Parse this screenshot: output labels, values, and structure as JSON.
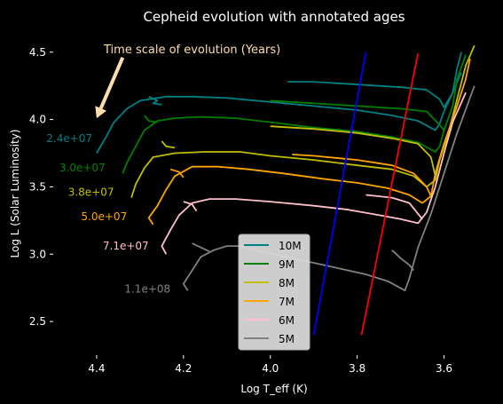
{
  "chart_data": {
    "type": "line",
    "title": "Cepheid evolution with annotated ages",
    "xlabel": "Log T_eff (K)",
    "ylabel": "Log L (Solar Luminosity)",
    "xlim": [
      4.5,
      3.55
    ],
    "ylim": [
      2.25,
      4.65
    ],
    "x_inverted": true,
    "xticks": [
      4.4,
      4.2,
      4.0,
      3.8,
      3.6
    ],
    "xtick_labels": [
      "4.4",
      "4.2",
      "4.0",
      "3.8",
      "3.6"
    ],
    "yticks": [
      2.5,
      3.0,
      3.5,
      4.0,
      4.5
    ],
    "ytick_labels": [
      "2.5",
      "3.0",
      "3.5",
      "4.0",
      "4.5"
    ],
    "grid": false,
    "legend_position": "lower-center",
    "annotation": {
      "text": "Time scale of evolution (Years)",
      "arrow_from": [
        4.34,
        4.46
      ],
      "arrow_to": [
        4.4,
        4.01
      ],
      "color": "#ffdead"
    },
    "instability_strip": [
      {
        "color": "#0000ff",
        "points": [
          [
            3.9,
            2.4
          ],
          [
            3.78,
            4.5
          ]
        ]
      },
      {
        "color": "#ff0000",
        "points": [
          [
            3.79,
            2.4
          ],
          [
            3.66,
            4.49
          ]
        ]
      }
    ],
    "series": [
      {
        "name": "10M",
        "color": "#008080",
        "age_label": "2.4e+07",
        "age_pos": [
          4.41,
          3.86
        ],
        "segments": [
          [
            [
              4.4,
              3.75
            ],
            [
              4.38,
              3.86
            ],
            [
              4.36,
              3.98
            ],
            [
              4.33,
              4.08
            ],
            [
              4.3,
              4.14
            ],
            [
              4.24,
              4.17
            ],
            [
              4.18,
              4.17
            ],
            [
              4.1,
              4.16
            ],
            [
              4.0,
              4.13
            ],
            [
              3.9,
              4.1
            ],
            [
              3.8,
              4.07
            ],
            [
              3.72,
              4.03
            ],
            [
              3.66,
              3.99
            ],
            [
              3.62,
              3.92
            ],
            [
              3.61,
              3.97
            ],
            [
              3.6,
              4.06
            ],
            [
              3.58,
              4.2
            ],
            [
              3.57,
              4.38
            ],
            [
              3.56,
              4.5
            ]
          ],
          [
            [
              4.28,
              4.17
            ],
            [
              4.26,
              4.14
            ],
            [
              4.27,
              4.12
            ],
            [
              4.25,
              4.11
            ]
          ],
          [
            [
              3.96,
              4.28
            ],
            [
              3.9,
              4.28
            ],
            [
              3.8,
              4.26
            ],
            [
              3.7,
              4.24
            ],
            [
              3.64,
              4.22
            ],
            [
              3.61,
              4.15
            ],
            [
              3.6,
              4.09
            ],
            [
              3.58,
              4.2
            ],
            [
              3.56,
              4.35
            ]
          ]
        ]
      },
      {
        "name": "9M",
        "color": "#008000",
        "age_label": "3.0e+07",
        "age_pos": [
          4.38,
          3.64
        ],
        "segments": [
          [
            [
              4.34,
              3.6
            ],
            [
              4.33,
              3.68
            ],
            [
              4.31,
              3.8
            ],
            [
              4.29,
              3.92
            ],
            [
              4.26,
              3.99
            ],
            [
              4.22,
              4.01
            ],
            [
              4.16,
              4.02
            ],
            [
              4.08,
              4.01
            ],
            [
              4.0,
              3.98
            ],
            [
              3.9,
              3.94
            ],
            [
              3.8,
              3.91
            ],
            [
              3.72,
              3.87
            ],
            [
              3.66,
              3.83
            ],
            [
              3.62,
              3.76
            ],
            [
              3.61,
              3.8
            ],
            [
              3.6,
              3.92
            ],
            [
              3.58,
              4.1
            ],
            [
              3.57,
              4.3
            ],
            [
              3.55,
              4.48
            ]
          ],
          [
            [
              4.29,
              4.03
            ],
            [
              4.28,
              3.99
            ],
            [
              4.26,
              3.98
            ]
          ],
          [
            [
              4.0,
              4.14
            ],
            [
              3.9,
              4.12
            ],
            [
              3.8,
              4.1
            ],
            [
              3.7,
              4.08
            ],
            [
              3.64,
              4.06
            ],
            [
              3.61,
              3.96
            ],
            [
              3.6,
              3.92
            ]
          ]
        ]
      },
      {
        "name": "8M",
        "color": "#bfbf00",
        "age_label": "3.8e+07",
        "age_pos": [
          4.36,
          3.46
        ],
        "segments": [
          [
            [
              4.32,
              3.42
            ],
            [
              4.31,
              3.52
            ],
            [
              4.29,
              3.64
            ],
            [
              4.27,
              3.72
            ],
            [
              4.22,
              3.75
            ],
            [
              4.15,
              3.76
            ],
            [
              4.07,
              3.76
            ],
            [
              4.0,
              3.73
            ],
            [
              3.9,
              3.7
            ],
            [
              3.8,
              3.66
            ],
            [
              3.72,
              3.63
            ],
            [
              3.67,
              3.58
            ],
            [
              3.64,
              3.5
            ],
            [
              3.62,
              3.55
            ],
            [
              3.61,
              3.7
            ],
            [
              3.59,
              3.9
            ],
            [
              3.57,
              4.15
            ],
            [
              3.55,
              4.4
            ],
            [
              3.53,
              4.55
            ]
          ],
          [
            [
              4.25,
              3.84
            ],
            [
              4.24,
              3.8
            ],
            [
              4.22,
              3.79
            ]
          ],
          [
            [
              4.0,
              3.95
            ],
            [
              3.9,
              3.93
            ],
            [
              3.8,
              3.9
            ],
            [
              3.72,
              3.86
            ],
            [
              3.66,
              3.82
            ],
            [
              3.63,
              3.72
            ],
            [
              3.62,
              3.58
            ]
          ]
        ]
      },
      {
        "name": "7M",
        "color": "#ffa500",
        "age_label": "5.0e+07",
        "age_pos": [
          4.33,
          3.28
        ],
        "segments": [
          [
            [
              4.27,
              3.22
            ],
            [
              4.28,
              3.27
            ],
            [
              4.26,
              3.36
            ],
            [
              4.24,
              3.48
            ],
            [
              4.22,
              3.58
            ],
            [
              4.18,
              3.65
            ],
            [
              4.12,
              3.65
            ],
            [
              4.05,
              3.63
            ],
            [
              3.97,
              3.6
            ],
            [
              3.88,
              3.56
            ],
            [
              3.8,
              3.53
            ],
            [
              3.73,
              3.49
            ],
            [
              3.68,
              3.44
            ],
            [
              3.65,
              3.38
            ],
            [
              3.63,
              3.43
            ],
            [
              3.62,
              3.6
            ],
            [
              3.6,
              3.82
            ],
            [
              3.57,
              4.1
            ],
            [
              3.55,
              4.3
            ],
            [
              3.54,
              4.45
            ]
          ],
          [
            [
              4.23,
              3.63
            ],
            [
              4.21,
              3.61
            ],
            [
              4.2,
              3.57
            ]
          ],
          [
            [
              3.95,
              3.74
            ],
            [
              3.9,
              3.73
            ],
            [
              3.8,
              3.7
            ],
            [
              3.72,
              3.66
            ],
            [
              3.67,
              3.6
            ],
            [
              3.64,
              3.5
            ],
            [
              3.63,
              3.43
            ]
          ]
        ]
      },
      {
        "name": "6M",
        "color": "#ffc0cb",
        "age_label": "7.1e+07",
        "age_pos": [
          4.28,
          3.06
        ],
        "segments": [
          [
            [
              4.24,
              3.0
            ],
            [
              4.25,
              3.06
            ],
            [
              4.23,
              3.18
            ],
            [
              4.21,
              3.29
            ],
            [
              4.18,
              3.38
            ],
            [
              4.14,
              3.41
            ],
            [
              4.08,
              3.41
            ],
            [
              4.0,
              3.39
            ],
            [
              3.9,
              3.36
            ],
            [
              3.82,
              3.33
            ],
            [
              3.75,
              3.29
            ],
            [
              3.7,
              3.26
            ],
            [
              3.66,
              3.23
            ],
            [
              3.64,
              3.31
            ],
            [
              3.62,
              3.5
            ],
            [
              3.6,
              3.75
            ],
            [
              3.58,
              3.98
            ],
            [
              3.55,
              4.2
            ]
          ],
          [
            [
              4.2,
              3.39
            ],
            [
              4.18,
              3.37
            ],
            [
              4.17,
              3.32
            ]
          ],
          [
            [
              3.78,
              3.44
            ],
            [
              3.72,
              3.42
            ],
            [
              3.68,
              3.38
            ],
            [
              3.66,
              3.3
            ],
            [
              3.65,
              3.26
            ]
          ]
        ]
      },
      {
        "name": "5M",
        "color": "#808080",
        "age_label": "1.1e+08",
        "age_pos": [
          4.23,
          2.74
        ],
        "segments": [
          [
            [
              4.19,
              2.73
            ],
            [
              4.2,
              2.78
            ],
            [
              4.18,
              2.88
            ],
            [
              4.16,
              2.98
            ],
            [
              4.13,
              3.03
            ],
            [
              4.1,
              3.06
            ],
            [
              4.07,
              3.06
            ],
            [
              4.02,
              3.02
            ],
            [
              3.95,
              2.97
            ],
            [
              3.85,
              2.9
            ],
            [
              3.78,
              2.85
            ],
            [
              3.73,
              2.8
            ],
            [
              3.69,
              2.73
            ],
            [
              3.68,
              2.82
            ],
            [
              3.66,
              3.05
            ],
            [
              3.63,
              3.3
            ],
            [
              3.6,
              3.6
            ],
            [
              3.57,
              3.9
            ],
            [
              3.53,
              4.25
            ]
          ],
          [
            [
              4.18,
              3.08
            ],
            [
              4.16,
              3.05
            ],
            [
              4.14,
              3.02
            ]
          ],
          [
            [
              3.72,
              3.03
            ],
            [
              3.7,
              2.97
            ],
            [
              3.68,
              2.92
            ],
            [
              3.67,
              2.88
            ]
          ]
        ]
      }
    ]
  }
}
